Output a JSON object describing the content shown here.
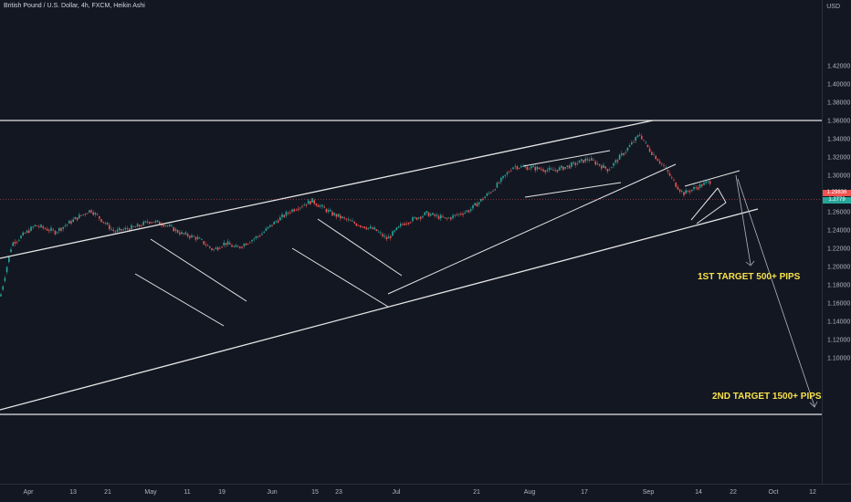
{
  "header": {
    "title": "British Pound / U.S. Dollar, 4h, FXCM, Heikin Ashi",
    "currency": "USD"
  },
  "colors": {
    "background": "#131722",
    "up": "#26a69a",
    "down": "#ef5350",
    "drawing": "#e6e6e6",
    "annotation": "#f7e14b",
    "axis_text": "#b2b5be"
  },
  "price_badges": [
    {
      "label": "1.29836",
      "color": "#ef5350"
    },
    {
      "label": "1.2779",
      "color": "#26a69a"
    }
  ],
  "annotations": {
    "target1": "1ST  TARGET 500+ PIPS",
    "target2": "2ND TARGET 1500+ PIPS"
  },
  "chart_data": {
    "type": "candlestick",
    "title": "British Pound / U.S. Dollar, 4h, FXCM, Heikin Ashi",
    "y_axis_label": "USD",
    "ylim": [
      1.09,
      1.43
    ],
    "x_ticks": [
      "Apr",
      "13",
      "21",
      "May",
      "11",
      "19",
      "Jun",
      "15",
      "23",
      "Jul",
      "21",
      "Aug",
      "17",
      "Sep",
      "14",
      "22",
      "Oct",
      "12"
    ],
    "y_ticks": [
      "1.42000",
      "1.40000",
      "1.38000",
      "1.36000",
      "1.34000",
      "1.32000",
      "1.30000",
      "1.28000",
      "1.26000",
      "1.24000",
      "1.22000",
      "1.20000",
      "1.18000",
      "1.16000",
      "1.14000",
      "1.12000",
      "1.10000"
    ],
    "price_path": [
      {
        "date": "Mar 23",
        "price": 1.165
      },
      {
        "date": "Mar 26",
        "price": 1.225
      },
      {
        "date": "Apr 1",
        "price": 1.245
      },
      {
        "date": "Apr 6",
        "price": 1.238
      },
      {
        "date": "Apr 11",
        "price": 1.252
      },
      {
        "date": "Apr 15",
        "price": 1.262
      },
      {
        "date": "Apr 21",
        "price": 1.238
      },
      {
        "date": "Apr 27",
        "price": 1.244
      },
      {
        "date": "Apr 30",
        "price": 1.25
      },
      {
        "date": "May 4",
        "price": 1.246
      },
      {
        "date": "May 8",
        "price": 1.236
      },
      {
        "date": "May 12",
        "price": 1.231
      },
      {
        "date": "May 16",
        "price": 1.218
      },
      {
        "date": "May 19",
        "price": 1.226
      },
      {
        "date": "May 22",
        "price": 1.22
      },
      {
        "date": "May 28",
        "price": 1.235
      },
      {
        "date": "Jun 1",
        "price": 1.25
      },
      {
        "date": "Jun 5",
        "price": 1.262
      },
      {
        "date": "Jun 10",
        "price": 1.272
      },
      {
        "date": "Jun 15",
        "price": 1.258
      },
      {
        "date": "Jun 21",
        "price": 1.247
      },
      {
        "date": "Jun 26",
        "price": 1.24
      },
      {
        "date": "Jun 29",
        "price": 1.23
      },
      {
        "date": "Jul 3",
        "price": 1.247
      },
      {
        "date": "Jul 9",
        "price": 1.258
      },
      {
        "date": "Jul 14",
        "price": 1.252
      },
      {
        "date": "Jul 20",
        "price": 1.262
      },
      {
        "date": "Jul 26",
        "price": 1.285
      },
      {
        "date": "Jul 31",
        "price": 1.31
      },
      {
        "date": "Aug 5",
        "price": 1.308
      },
      {
        "date": "Aug 10",
        "price": 1.305
      },
      {
        "date": "Aug 14",
        "price": 1.31
      },
      {
        "date": "Aug 19",
        "price": 1.318
      },
      {
        "date": "Aug 24",
        "price": 1.306
      },
      {
        "date": "Aug 28",
        "price": 1.325
      },
      {
        "date": "Sep 1",
        "price": 1.345
      },
      {
        "date": "Sep 3",
        "price": 1.33
      },
      {
        "date": "Sep 7",
        "price": 1.31
      },
      {
        "date": "Sep 10",
        "price": 1.29
      },
      {
        "date": "Sep 12",
        "price": 1.28
      },
      {
        "date": "Sep 16",
        "price": 1.288
      },
      {
        "date": "Sep 19",
        "price": 1.294
      }
    ]
  }
}
